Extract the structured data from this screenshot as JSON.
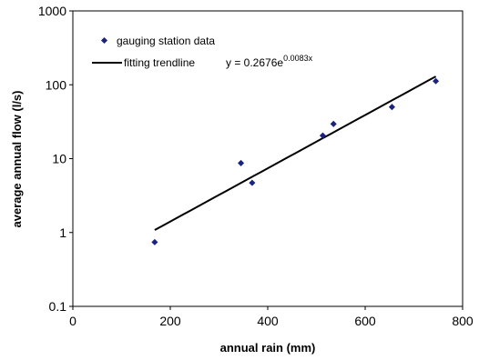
{
  "chart_data": {
    "type": "scatter",
    "xlabel": "annual rain (mm)",
    "ylabel": "average annual flow (l/s)",
    "xlim": [
      0,
      800
    ],
    "ylim": [
      0.1,
      1000
    ],
    "yscale": "log",
    "x_ticks": [
      "0",
      "200",
      "400",
      "600",
      "800"
    ],
    "y_ticks": [
      "0.1",
      "1",
      "10",
      "100",
      "1000"
    ],
    "grid": false,
    "legend_position": "top-left",
    "colors": {
      "points": "#1a237e",
      "trendline": "#000000"
    },
    "series": [
      {
        "name": "gauging station data",
        "x": [
          168,
          345,
          368,
          513,
          535,
          655,
          745
        ],
        "y": [
          0.74,
          8.7,
          4.7,
          20.5,
          29.5,
          50,
          112
        ]
      }
    ],
    "trendline": {
      "name": "fitting trendline",
      "equation_prefix": "y = 0.2676e",
      "equation_exponent": "0.0083x",
      "a": 0.2676,
      "b": 0.0083,
      "x_range": [
        168,
        745
      ]
    }
  }
}
